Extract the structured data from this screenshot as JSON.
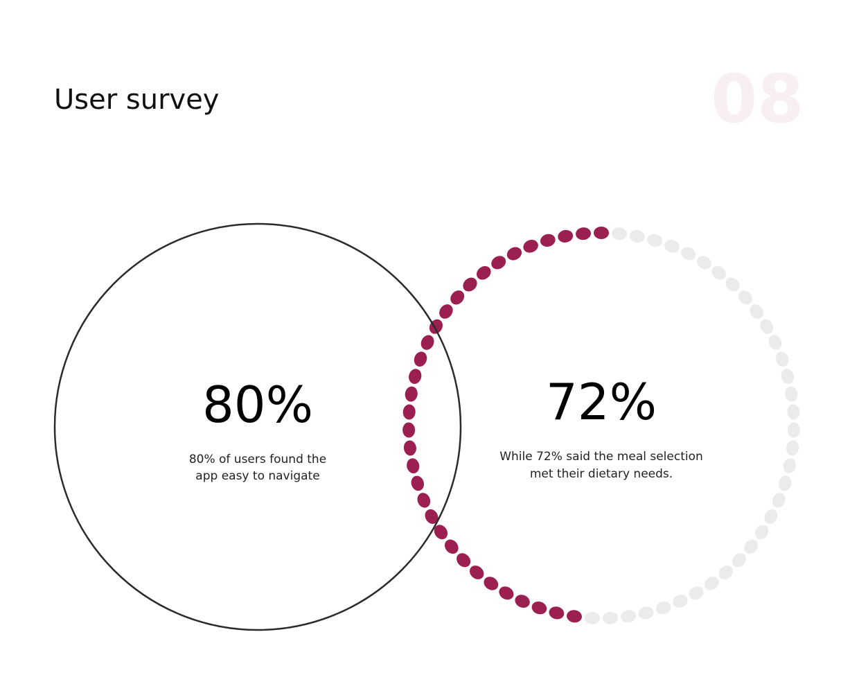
{
  "header": {
    "title": "User survey",
    "page_number": "08"
  },
  "stats": [
    {
      "value": "80%",
      "description_lines": [
        "80% of users found the",
        "app easy to navigate"
      ]
    },
    {
      "value": "72%",
      "description_lines": [
        "While 72% said the meal selection",
        "met their dietary needs."
      ]
    }
  ]
}
